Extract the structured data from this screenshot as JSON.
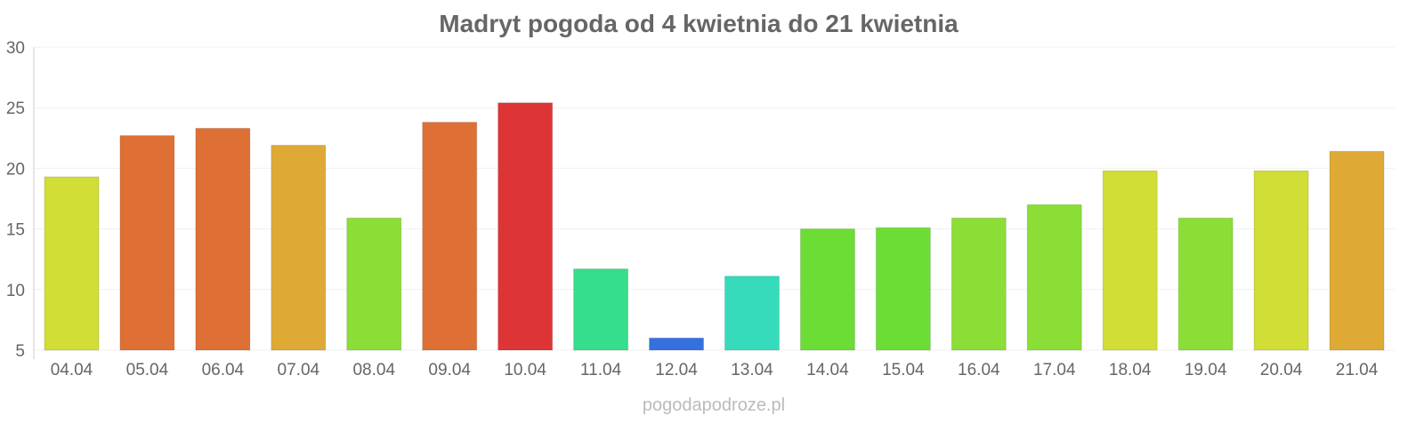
{
  "chart_data": {
    "type": "bar",
    "title": "Madryt pogoda od 4 kwietnia do 21 kwietnia",
    "xlabel": "",
    "ylabel": "",
    "ylim": [
      5,
      30
    ],
    "yticks": [
      5,
      10,
      15,
      20,
      25,
      30
    ],
    "grid": true,
    "categories": [
      "04.04",
      "05.04",
      "06.04",
      "07.04",
      "08.04",
      "09.04",
      "10.04",
      "11.04",
      "12.04",
      "13.04",
      "14.04",
      "15.04",
      "16.04",
      "17.04",
      "18.04",
      "19.04",
      "20.04",
      "21.04"
    ],
    "values": [
      19.3,
      22.7,
      23.3,
      21.9,
      15.9,
      23.8,
      25.4,
      11.7,
      6.0,
      11.1,
      15.0,
      15.1,
      15.9,
      17.0,
      19.8,
      15.9,
      19.8,
      21.4
    ],
    "colors": [
      "#d0de35",
      "#de7035",
      "#de7035",
      "#deaa35",
      "#8ade35",
      "#de7035",
      "#dd3535",
      "#35de8a",
      "#3570de",
      "#35dbbb",
      "#6bdd35",
      "#6bdd35",
      "#8ade35",
      "#8ade35",
      "#d0de35",
      "#8ade35",
      "#d0de35",
      "#deaa35"
    ]
  },
  "watermark": "pogodapodroze.pl"
}
